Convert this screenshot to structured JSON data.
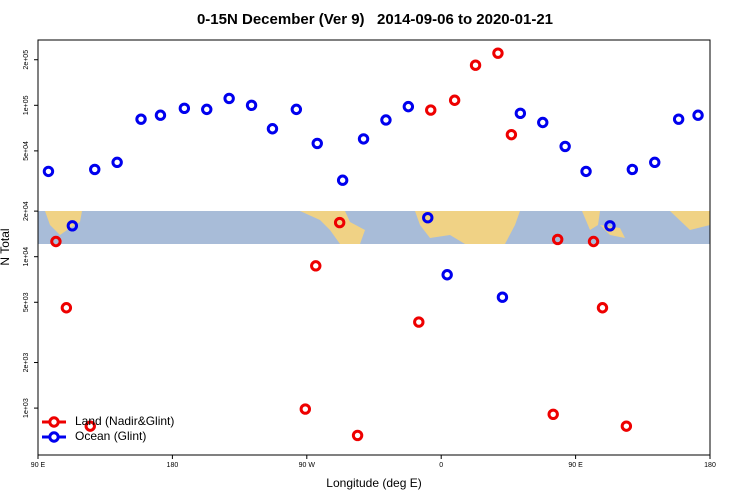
{
  "chart_data": {
    "type": "scatter",
    "title": "0-15N December (Ver 9)   2014-09-06 to 2020-01-21",
    "x_label": "Longitude (deg E)",
    "y_label": "N Total",
    "log_y": true,
    "legend": "bottom-left",
    "xlim": [
      90,
      540
    ],
    "xticks": [
      {
        "value": 90,
        "label": "90 E"
      },
      {
        "value": 180,
        "label": "180"
      },
      {
        "value": 270,
        "label": "90 W"
      },
      {
        "value": 360,
        "label": "0"
      },
      {
        "value": 450,
        "label": "90 E"
      },
      {
        "value": 540,
        "label": "180"
      }
    ],
    "ylim": [
      490,
      270000
    ],
    "yticks": [
      {
        "value": 1000,
        "label": "1e+03"
      },
      {
        "value": 2000,
        "label": "2e+03"
      },
      {
        "value": 5000,
        "label": "5e+03"
      },
      {
        "value": 10000,
        "label": "1e+04"
      },
      {
        "value": 20000,
        "label": "2e+04"
      },
      {
        "value": 50000,
        "label": "5e+04"
      },
      {
        "value": 100000,
        "label": "1e+05"
      },
      {
        "value": 200000,
        "label": "2e+05"
      }
    ],
    "series": [
      {
        "name": "Land (Nadir&Glint)",
        "color": "#ee0000",
        "x": [
          102,
          109,
          125,
          269,
          276,
          292,
          304,
          345,
          353,
          369,
          383,
          398,
          407,
          435,
          438,
          462,
          468,
          484
        ],
        "values": [
          12600,
          4600,
          760,
          985,
          8700,
          16800,
          660,
          3700,
          93000,
          108000,
          184000,
          221000,
          64000,
          910,
          13000,
          12600,
          4600,
          760
        ]
      },
      {
        "name": "Ocean (Glint)",
        "color": "#0000ee",
        "x": [
          97,
          113,
          128,
          143,
          159,
          172,
          188,
          203,
          218,
          233,
          247,
          263,
          277,
          294,
          308,
          323,
          338,
          351,
          364,
          401,
          413,
          428,
          443,
          457,
          473,
          488,
          503,
          519,
          532
        ],
        "values": [
          36600,
          16000,
          37700,
          42000,
          81000,
          86000,
          95500,
          94000,
          111000,
          100000,
          70000,
          94000,
          56000,
          32000,
          60000,
          80000,
          98000,
          18100,
          7600,
          5400,
          88500,
          77000,
          53500,
          36600,
          16000,
          37700,
          42000,
          81000,
          86000
        ]
      }
    ]
  }
}
